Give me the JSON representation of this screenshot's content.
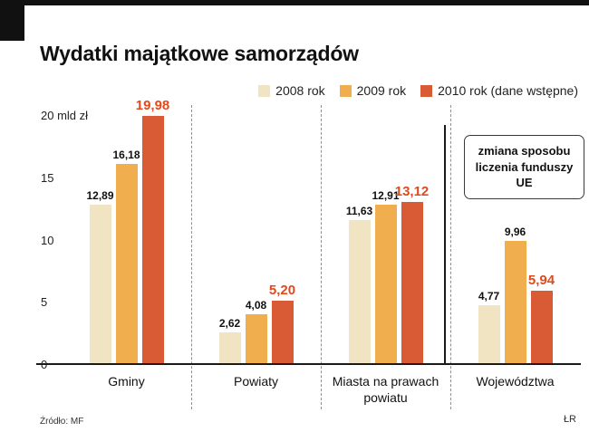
{
  "title": "Wydatki majątkowe samorządów",
  "legend": [
    {
      "label": "2008 rok",
      "color": "#f1e4c2"
    },
    {
      "label": "2009 rok",
      "color": "#f0ae4e"
    },
    {
      "label": "2010 rok (dane wstępne)",
      "color": "#d85b35"
    }
  ],
  "annotation": {
    "text": "zmiana sposobu liczenia funduszy UE"
  },
  "footer": {
    "source": "Źródło: MF",
    "credit": "ŁR"
  },
  "colors": {
    "accent_2010_text": "#e2491c",
    "axis": "#1a1a1a",
    "separator": "#8f8f8f"
  },
  "chart_data": {
    "type": "bar",
    "title": "Wydatki majątkowe samorządów",
    "ylabel": "mld zł",
    "ylim": [
      0,
      20
    ],
    "y_ticks": [
      0,
      5,
      10,
      15,
      20
    ],
    "y_tick_labels": [
      "0",
      "5",
      "10",
      "15",
      "20 mld zł"
    ],
    "grid": false,
    "legend_position": "top-right",
    "categories": [
      "Gminy",
      "Powiaty",
      "Miasta na prawach powiatu",
      "Województwa"
    ],
    "series": [
      {
        "name": "2008 rok",
        "color": "#f1e4c2",
        "values": [
          12.89,
          2.62,
          11.63,
          4.77
        ]
      },
      {
        "name": "2009 rok",
        "color": "#f0ae4e",
        "values": [
          16.18,
          4.08,
          12.91,
          9.96
        ]
      },
      {
        "name": "2010 rok (dane wstępne)",
        "color": "#d85b35",
        "values": [
          19.98,
          5.2,
          13.12,
          5.94
        ]
      }
    ],
    "value_labels": [
      [
        "12,89",
        "2,62",
        "11,63",
        "4,77"
      ],
      [
        "16,18",
        "4,08",
        "12,91",
        "9,96"
      ],
      [
        "19,98",
        "5,20",
        "13,12",
        "5,94"
      ]
    ],
    "annotation": "zmiana sposobu liczenia funduszy UE"
  }
}
